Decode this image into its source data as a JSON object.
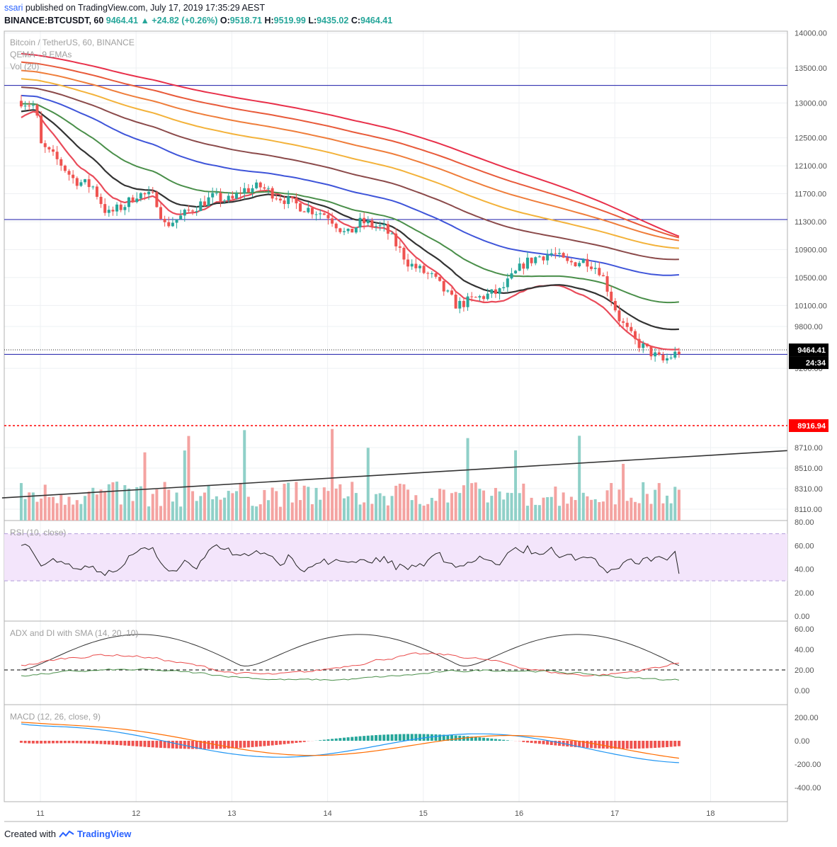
{
  "header": {
    "user": "ssari",
    "published_text": "published on TradingView.com, July 17, 2019 17:35:29 AEST",
    "symbol": "BINANCE:BTCUSDT, 60",
    "last": "9464.41",
    "change": "▲ +24.82 (+0.26%)",
    "o_label": "O:",
    "o": "9518.71",
    "h_label": "H:",
    "h": "9519.99",
    "l_label": "L:",
    "l": "9435.02",
    "c_label": "C:",
    "c": "9464.41"
  },
  "legend": {
    "line1": "Bitcoin / TetherUS, 60, BINANCE",
    "line2": "QEMA - 9 EMAs",
    "line3": "Vol (20)",
    "rsi": "RSI (10, close)",
    "adx": "ADX and DI with SMA (14, 20, 10)",
    "macd": "MACD (12, 26, close, 9)"
  },
  "footer": {
    "created_with": "Created with",
    "brand": "TradingView"
  },
  "colors": {
    "up": "#26a69a",
    "down": "#ef5350",
    "hline": "#1a1aa8",
    "redline": "#ff0000",
    "rsi_band": "#e1bee7"
  },
  "chart_data": [
    {
      "type": "candlestick",
      "name": "Bitcoin / TetherUS, 60, BINANCE",
      "x_tick_labels": [
        "11",
        "12",
        "13",
        "14",
        "15",
        "16",
        "17",
        "18"
      ],
      "y_tick_labels": [
        "14000.00",
        "13500.00",
        "13000.00",
        "12500.00",
        "12100.00",
        "11700.00",
        "11300.00",
        "10900.00",
        "10500.00",
        "10100.00",
        "9800.00",
        "9200.00",
        "8710.00",
        "8510.00",
        "8310.00",
        "8110.00"
      ],
      "last_price_label": "9464.41",
      "countdown_label": "24:34",
      "alert_line_label": "8916.94",
      "horizontal_levels": [
        13250,
        11330,
        9400
      ],
      "close_path_points": [
        [
          10.8,
          13030
        ],
        [
          10.95,
          12950
        ],
        [
          11.0,
          12400
        ],
        [
          11.2,
          12150
        ],
        [
          11.35,
          11900
        ],
        [
          11.55,
          11800
        ],
        [
          11.7,
          11400
        ],
        [
          11.9,
          11550
        ],
        [
          12.0,
          11700
        ],
        [
          12.2,
          11650
        ],
        [
          12.3,
          11250
        ],
        [
          12.45,
          11350
        ],
        [
          12.6,
          11500
        ],
        [
          12.8,
          11650
        ],
        [
          13.0,
          11600
        ],
        [
          13.1,
          11750
        ],
        [
          13.3,
          11800
        ],
        [
          13.5,
          11650
        ],
        [
          13.75,
          11500
        ],
        [
          14.0,
          11400
        ],
        [
          14.2,
          11100
        ],
        [
          14.35,
          11300
        ],
        [
          14.6,
          11200
        ],
        [
          14.85,
          10700
        ],
        [
          15.1,
          10500
        ],
        [
          15.35,
          10100
        ],
        [
          15.55,
          10200
        ],
        [
          15.8,
          10300
        ],
        [
          16.05,
          10700
        ],
        [
          16.2,
          10800
        ],
        [
          16.35,
          10850
        ],
        [
          16.5,
          10700
        ],
        [
          16.7,
          10750
        ],
        [
          16.85,
          10600
        ],
        [
          17.05,
          9900
        ],
        [
          17.2,
          9600
        ],
        [
          17.4,
          9400
        ],
        [
          17.5,
          9300
        ],
        [
          17.7,
          9464.41
        ]
      ]
    },
    {
      "type": "line",
      "name": "QEMA - 9 EMAs",
      "colors": [
        "#e94b5a",
        "#333333",
        "#4a8f4a",
        "#3f55d9",
        "#8b4a4a",
        "#f3b23a",
        "#ef7d3a",
        "#e85a3a",
        "#e8304a"
      ],
      "end_values": [
        9470,
        9760,
        10150,
        10540,
        10760,
        10920,
        11030,
        11070,
        11090
      ]
    },
    {
      "type": "bar",
      "name": "Vol (20)",
      "colors": [
        "#26a69a",
        "#ef5350"
      ],
      "trendline": {
        "start": [
          10.6,
          8220
        ],
        "end": [
          18.8,
          8680
        ]
      }
    },
    {
      "type": "line",
      "name": "RSI (10, close)",
      "y_tick_labels": [
        "80.00",
        "60.00",
        "40.00",
        "20.00",
        "0.00"
      ],
      "band": [
        30,
        70
      ],
      "end_value": 36
    },
    {
      "type": "line",
      "name": "ADX and DI with SMA (14, 20, 10)",
      "y_tick_labels": [
        "60.00",
        "40.00",
        "20.00",
        "0.00"
      ],
      "reference_line": 20,
      "series": [
        {
          "color": "#333333"
        },
        {
          "color": "#e94b4b"
        },
        {
          "color": "#4a8f4a"
        }
      ]
    },
    {
      "type": "bar",
      "name": "MACD (12, 26, close, 9)",
      "y_tick_labels": [
        "200.00",
        "0.00",
        "-200.00",
        "-400.00"
      ],
      "series": [
        {
          "color": "#2196f3"
        },
        {
          "color": "#ff6d00"
        }
      ]
    }
  ]
}
